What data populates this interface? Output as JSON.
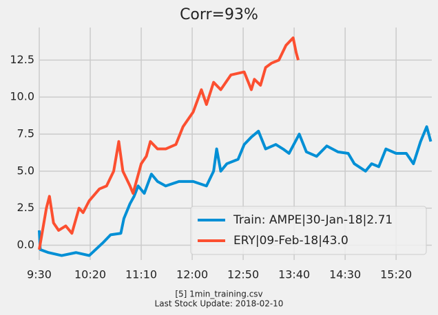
{
  "chart_data": {
    "type": "line",
    "title": "Corr=93%",
    "footnotes": [
      "[5] 1min_training.csv",
      "Last Stock Update: 2018-02-10"
    ],
    "xlim": [
      570,
      955
    ],
    "ylim": [
      -1,
      14.7
    ],
    "xticks": [
      {
        "value": 570,
        "label": "9:30"
      },
      {
        "value": 620,
        "label": "10:20"
      },
      {
        "value": 670,
        "label": "11:10"
      },
      {
        "value": 720,
        "label": "12:00"
      },
      {
        "value": 770,
        "label": "12:50"
      },
      {
        "value": 820,
        "label": "13:40"
      },
      {
        "value": 870,
        "label": "14:30"
      },
      {
        "value": 920,
        "label": "15:20"
      }
    ],
    "yticks": [
      {
        "value": 0,
        "label": "0.0"
      },
      2.5,
      {
        "value": 5,
        "label": "5.0"
      },
      7.5,
      {
        "value": 10,
        "label": "10.0"
      },
      12.5
    ],
    "grid": true,
    "legend": "lower right",
    "series": [
      {
        "name": "Train: AMPE|30-Jan-18|2.71",
        "color": "#008fd5",
        "x": [
          570,
          571,
          579,
          592,
          606,
          619,
          633,
          640,
          650,
          653,
          659,
          663,
          667,
          673,
          680,
          686,
          694,
          707,
          721,
          734,
          741,
          744,
          748,
          754,
          765,
          771,
          778,
          785,
          792,
          802,
          809,
          815,
          825,
          832,
          842,
          852,
          863,
          873,
          879,
          890,
          896,
          903,
          910,
          920,
          930,
          937,
          944,
          950,
          954
        ],
        "values": [
          1.0,
          -0.3,
          -0.5,
          -0.7,
          -0.5,
          -0.7,
          0.2,
          0.7,
          0.8,
          1.8,
          2.8,
          3.3,
          4.0,
          3.5,
          4.8,
          4.3,
          4.0,
          4.3,
          4.3,
          4.0,
          5.0,
          6.5,
          5.0,
          5.5,
          5.8,
          6.8,
          7.3,
          7.7,
          6.5,
          6.8,
          6.5,
          6.2,
          7.5,
          6.3,
          6.0,
          6.7,
          6.3,
          6.2,
          5.5,
          5.0,
          5.5,
          5.3,
          6.5,
          6.2,
          6.2,
          5.5,
          7.0,
          8.0,
          7.0
        ]
      },
      {
        "name": "ERY|09-Feb-18|43.0",
        "color": "#fc4f30",
        "x": [
          570,
          577,
          580,
          584,
          589,
          596,
          602,
          609,
          613,
          619,
          629,
          636,
          643,
          648,
          652,
          659,
          662,
          670,
          675,
          679,
          686,
          694,
          704,
          711,
          721,
          729,
          734,
          741,
          748,
          758,
          771,
          778,
          781,
          787,
          792,
          798,
          805,
          812,
          819,
          822,
          824
        ],
        "values": [
          -0.3,
          2.5,
          3.3,
          1.5,
          1.0,
          1.3,
          0.8,
          2.5,
          2.2,
          3.0,
          3.8,
          4.0,
          5.0,
          7.0,
          5.0,
          4.0,
          3.5,
          5.5,
          6.0,
          7.0,
          6.5,
          6.5,
          6.8,
          8.0,
          9.0,
          10.5,
          9.5,
          11.0,
          10.5,
          11.5,
          11.7,
          10.5,
          11.2,
          10.8,
          12.0,
          12.3,
          12.5,
          13.5,
          14.0,
          13.0,
          12.5
        ]
      }
    ]
  }
}
